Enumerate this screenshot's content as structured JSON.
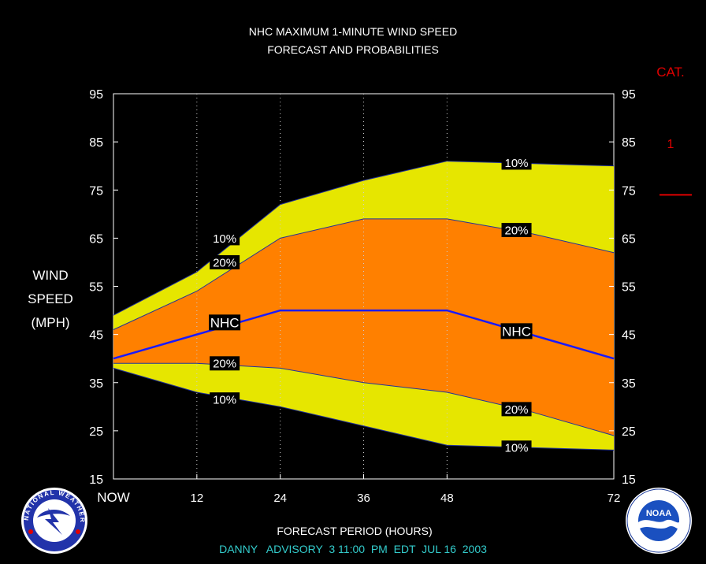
{
  "chart_data": {
    "type": "area",
    "title": "NHC MAXIMUM 1-MINUTE WIND SPEED",
    "subtitle": "FORECAST AND PROBABILITIES",
    "ylabel": [
      "WIND",
      "SPEED",
      "(MPH)"
    ],
    "xlabel": "FORECAST PERIOD (HOURS)",
    "footer": "DANNY   ADVISORY  3 11:00  PM  EDT  JUL 16  2003",
    "x_ticks": [
      {
        "x": 0,
        "label": "NOW"
      },
      {
        "x": 12,
        "label": "12"
      },
      {
        "x": 24,
        "label": "24"
      },
      {
        "x": 36,
        "label": "36"
      },
      {
        "x": 48,
        "label": "48"
      },
      {
        "x": 72,
        "label": "72"
      }
    ],
    "y_ticks": [
      15,
      25,
      35,
      45,
      55,
      65,
      75,
      85,
      95
    ],
    "xlim": [
      0,
      72
    ],
    "ylim": [
      15,
      95
    ],
    "x": [
      0,
      12,
      24,
      36,
      48,
      60,
      72
    ],
    "series": [
      {
        "label": "10%",
        "y": [
          49,
          58,
          72,
          77,
          81,
          80.5,
          80
        ]
      },
      {
        "label": "20%",
        "y": [
          46,
          54,
          65,
          69,
          69,
          66,
          62
        ]
      },
      {
        "label": "NHC",
        "y": [
          40,
          45,
          50,
          50,
          50,
          45,
          40
        ]
      },
      {
        "label": "20%",
        "y": [
          39,
          39,
          38,
          35,
          33,
          29,
          24
        ]
      },
      {
        "label": "10%",
        "y": [
          38,
          33,
          30,
          26,
          22,
          21.5,
          21
        ]
      }
    ],
    "series_labels": [
      {
        "series": 0,
        "text": "10%",
        "x": 16,
        "y": 65
      },
      {
        "series": 0,
        "text": "10%",
        "x": 58,
        "y": 80.7
      },
      {
        "series": 1,
        "text": "20%",
        "x": 16,
        "y": 60
      },
      {
        "series": 1,
        "text": "20%",
        "x": 58,
        "y": 66.7
      },
      {
        "series": 2,
        "text": "NHC",
        "x": 16,
        "y": 47.5
      },
      {
        "series": 2,
        "text": "NHC",
        "x": 58,
        "y": 45.7
      },
      {
        "series": 3,
        "text": "20%",
        "x": 16,
        "y": 39
      },
      {
        "series": 3,
        "text": "20%",
        "x": 58,
        "y": 29.5
      },
      {
        "series": 4,
        "text": "10%",
        "x": 16,
        "y": 31.5
      },
      {
        "series": 4,
        "text": "10%",
        "x": 58,
        "y": 21.5
      }
    ],
    "category": {
      "label": "CAT.",
      "items": [
        {
          "name": "1",
          "threshold": 74
        }
      ]
    },
    "colors": {
      "outer_band": "#e6e600",
      "inner_band": "#ff8000",
      "nhc_line": "#1a1aff",
      "category": "#e00000",
      "footer": "#33cccc"
    },
    "grid": "vertical dotted at x ticks",
    "legend": "none"
  },
  "logos": {
    "left": "NATIONAL WEATHER SERVICE",
    "right": "NOAA"
  }
}
